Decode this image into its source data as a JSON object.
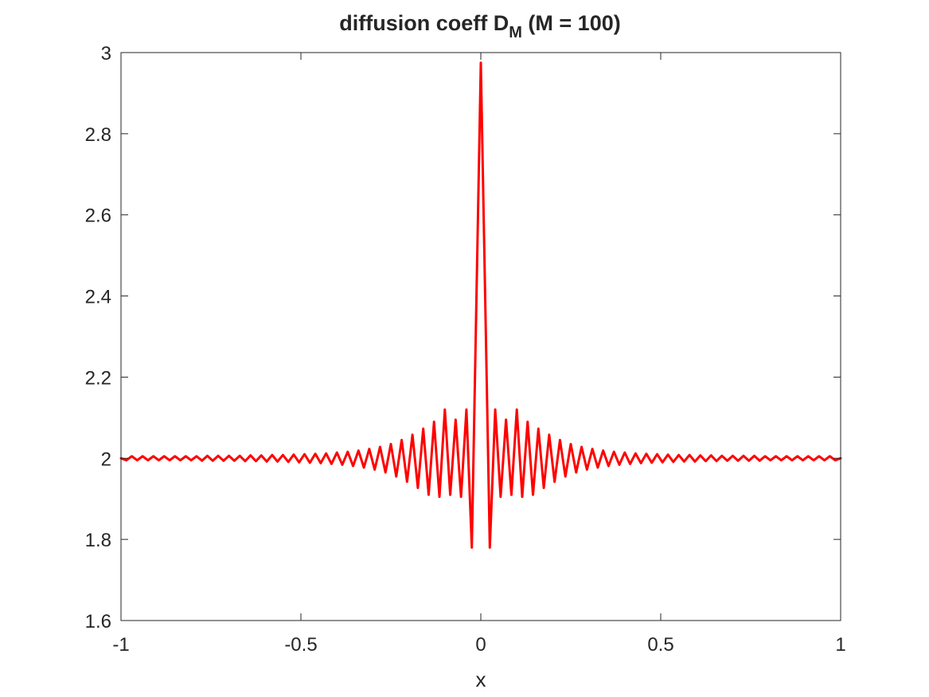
{
  "chart_data": {
    "type": "line",
    "title": {
      "prefix": "diffusion coeff D",
      "subscript": "M",
      "suffix": " (M = 100)"
    },
    "xlabel": "x",
    "ylabel": "",
    "xlim": [
      -1,
      1
    ],
    "ylim": [
      1.6,
      3
    ],
    "xticks": [
      -1,
      -0.5,
      0,
      0.5,
      1
    ],
    "xtick_labels": [
      "-1",
      "-0.5",
      "0",
      "0.5",
      "1"
    ],
    "yticks": [
      1.6,
      1.8,
      2,
      2.2,
      2.4,
      2.6,
      2.8,
      3
    ],
    "ytick_labels": [
      "1.6",
      "1.8",
      "2",
      "2.2",
      "2.4",
      "2.6",
      "2.8",
      "3"
    ],
    "grid": false,
    "box": true,
    "series": [
      {
        "color": "#ff0000",
        "x": [
          -1.0,
          -0.985,
          -0.955,
          -0.925,
          -0.895,
          -0.865,
          -0.835,
          -0.805,
          -0.775,
          -0.745,
          -0.715,
          -0.685,
          -0.655,
          -0.625,
          -0.595,
          -0.565,
          -0.535,
          -0.505,
          -0.475,
          -0.445,
          -0.415,
          -0.385,
          -0.355,
          -0.325,
          -0.295,
          -0.265,
          -0.235,
          -0.205,
          -0.175,
          -0.145,
          -0.115,
          -0.085,
          -0.055,
          -0.025,
          0.0,
          0.025,
          0.055,
          0.085,
          0.115,
          0.145,
          0.175,
          0.205,
          0.235,
          0.265,
          0.295,
          0.325,
          0.355,
          0.385,
          0.415,
          0.445,
          0.475,
          0.505,
          0.535,
          0.565,
          0.595,
          0.625,
          0.655,
          0.685,
          0.715,
          0.745,
          0.775,
          0.805,
          0.835,
          0.865,
          0.895,
          0.925,
          0.955,
          0.985,
          1.0
        ],
        "y": [
          2.0,
          1.995,
          1.995,
          1.995,
          1.995,
          1.995,
          1.995,
          1.995,
          1.994,
          1.994,
          1.994,
          1.994,
          1.993,
          1.993,
          1.992,
          1.992,
          1.991,
          1.99,
          1.989,
          1.988,
          1.986,
          1.984,
          1.981,
          1.977,
          1.972,
          1.965,
          1.955,
          1.942,
          1.927,
          1.91,
          1.905,
          1.91,
          1.905,
          1.78,
          2.975,
          1.78,
          1.905,
          1.91,
          1.905,
          1.91,
          1.927,
          1.942,
          1.955,
          1.965,
          1.972,
          1.977,
          1.981,
          1.984,
          1.986,
          1.988,
          1.989,
          1.99,
          1.991,
          1.992,
          1.992,
          1.993,
          1.993,
          1.994,
          1.994,
          1.994,
          1.994,
          1.995,
          1.995,
          1.995,
          1.995,
          1.995,
          1.995,
          1.995,
          2.0
        ],
        "peaks_x": [
          -0.97,
          -0.94,
          -0.91,
          -0.88,
          -0.85,
          -0.82,
          -0.79,
          -0.76,
          -0.73,
          -0.7,
          -0.67,
          -0.64,
          -0.61,
          -0.58,
          -0.55,
          -0.52,
          -0.49,
          -0.46,
          -0.43,
          -0.4,
          -0.37,
          -0.34,
          -0.31,
          -0.28,
          -0.25,
          -0.22,
          -0.19,
          -0.16,
          -0.13,
          -0.1,
          -0.07,
          -0.04,
          0.04,
          0.07,
          0.1,
          0.13,
          0.16,
          0.19,
          0.22,
          0.25,
          0.28,
          0.31,
          0.34,
          0.37,
          0.4,
          0.43,
          0.46,
          0.49,
          0.52,
          0.55,
          0.58,
          0.61,
          0.64,
          0.67,
          0.7,
          0.73,
          0.76,
          0.79,
          0.82,
          0.85,
          0.88,
          0.91,
          0.94,
          0.97
        ],
        "peaks_y": [
          2.005,
          2.005,
          2.005,
          2.005,
          2.005,
          2.005,
          2.005,
          2.006,
          2.006,
          2.006,
          2.006,
          2.007,
          2.007,
          2.008,
          2.008,
          2.009,
          2.01,
          2.011,
          2.012,
          2.014,
          2.016,
          2.019,
          2.023,
          2.028,
          2.035,
          2.045,
          2.058,
          2.073,
          2.09,
          2.12,
          2.095,
          2.12,
          2.12,
          2.095,
          2.12,
          2.09,
          2.073,
          2.058,
          2.045,
          2.035,
          2.028,
          2.023,
          2.019,
          2.016,
          2.014,
          2.012,
          2.011,
          2.01,
          2.009,
          2.008,
          2.008,
          2.007,
          2.007,
          2.006,
          2.006,
          2.006,
          2.006,
          2.005,
          2.005,
          2.005,
          2.005,
          2.005,
          2.005,
          2.005
        ]
      }
    ]
  }
}
